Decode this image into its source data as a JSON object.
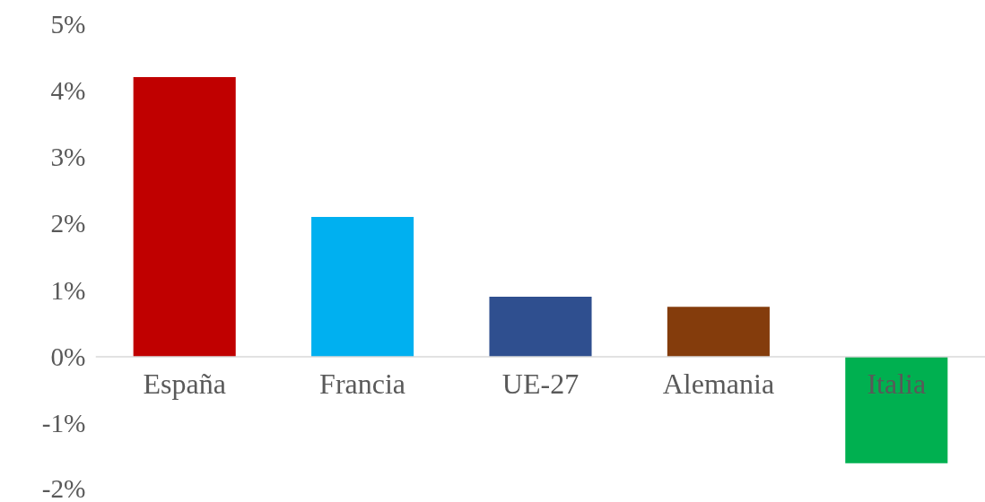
{
  "chart_data": {
    "type": "bar",
    "categories": [
      "España",
      "Francia",
      "UE-27",
      "Alemania",
      "Italia"
    ],
    "values": [
      4.2,
      2.1,
      0.9,
      0.75,
      -1.6
    ],
    "colors": [
      "#c00000",
      "#00b0f0",
      "#2f4f8f",
      "#843c0c",
      "#00b050"
    ],
    "ylim": [
      -2,
      5
    ],
    "yticks": [
      {
        "value": -2,
        "label": "-2%"
      },
      {
        "value": -1,
        "label": "-1%"
      },
      {
        "value": 0,
        "label": "0%"
      },
      {
        "value": 1,
        "label": "1%"
      },
      {
        "value": 2,
        "label": "2%"
      },
      {
        "value": 3,
        "label": "3%"
      },
      {
        "value": 4,
        "label": "4%"
      },
      {
        "value": 5,
        "label": "5%"
      }
    ],
    "grid": false
  }
}
